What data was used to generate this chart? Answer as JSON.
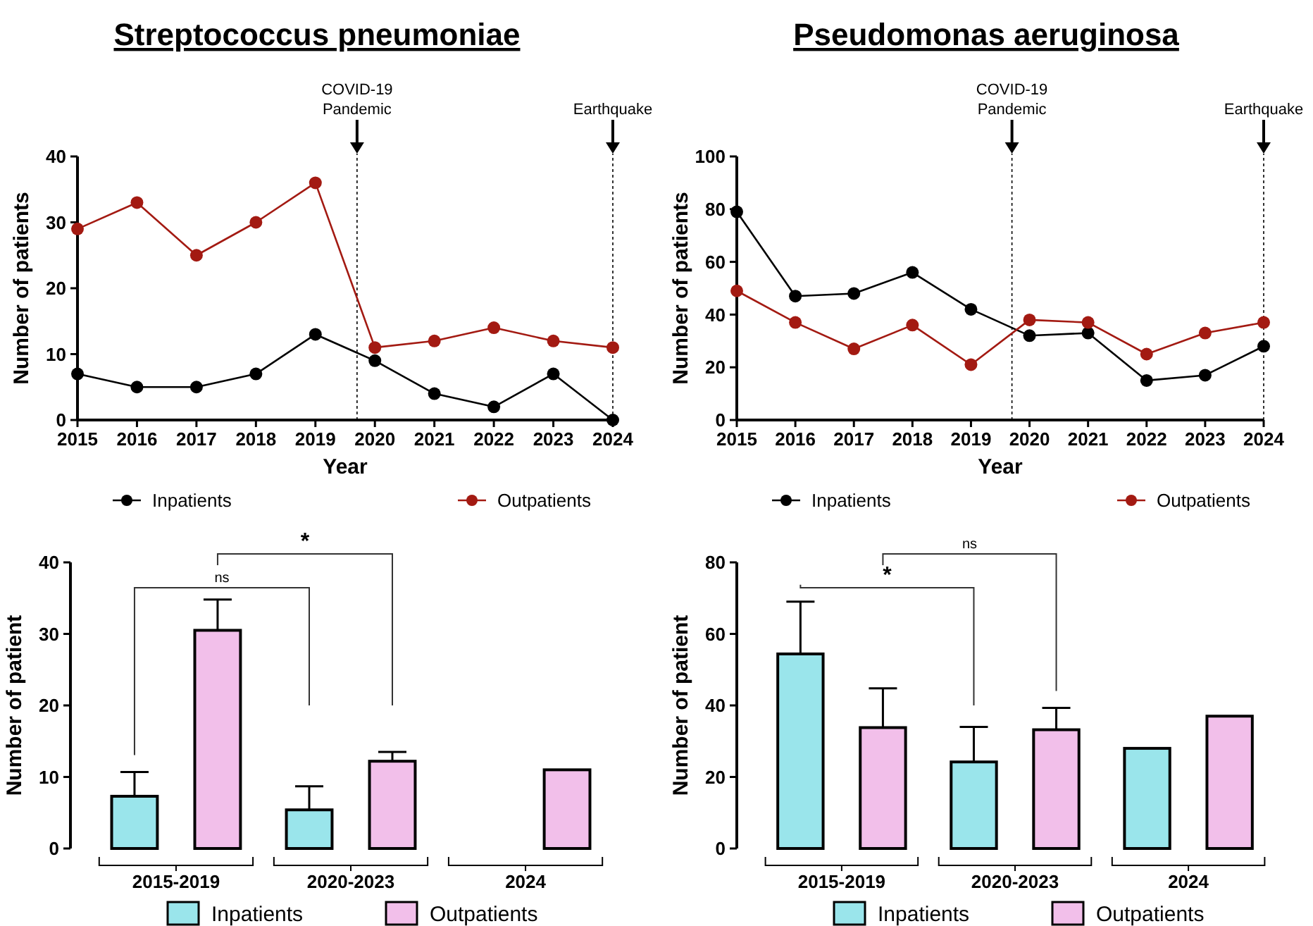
{
  "chart_data": [
    {
      "type": "line",
      "title": "Streptococcus pneumoniae",
      "xlabel": "Year",
      "ylabel": "Number of patients",
      "x": [
        2015,
        2016,
        2017,
        2018,
        2019,
        2020,
        2021,
        2022,
        2023,
        2024
      ],
      "xlim": [
        2015,
        2024
      ],
      "xticks": [
        2015,
        2016,
        2017,
        2018,
        2019,
        2020,
        2021,
        2022,
        2023,
        2024
      ],
      "ylim": [
        0,
        40
      ],
      "yticks": [
        0,
        10,
        20,
        30,
        40
      ],
      "marker": "circle",
      "legend": "bottom",
      "series": [
        {
          "name": "Inpatients",
          "color": "#000000",
          "values": [
            7,
            5,
            5,
            7,
            13,
            9,
            4,
            2,
            7,
            0
          ]
        },
        {
          "name": "Outpatients",
          "color": "#a31a12",
          "values": [
            29,
            33,
            25,
            30,
            36,
            11,
            12,
            14,
            12,
            11
          ]
        }
      ],
      "ref_lines": [
        {
          "axis": "x",
          "value": 2019.7,
          "label": "COVID-19 Pandemic",
          "line_style": "dotted"
        },
        {
          "axis": "x",
          "value": 2024,
          "label": "Earthquake",
          "line_style": "dotted"
        }
      ]
    },
    {
      "type": "line",
      "title": "Pseudomonas aeruginosa",
      "xlabel": "Year",
      "ylabel": "Number of patients",
      "x": [
        2015,
        2016,
        2017,
        2018,
        2019,
        2020,
        2021,
        2022,
        2023,
        2024
      ],
      "xlim": [
        2015,
        2024
      ],
      "xticks": [
        2015,
        2016,
        2017,
        2018,
        2019,
        2020,
        2021,
        2022,
        2023,
        2024
      ],
      "ylim": [
        0,
        100
      ],
      "yticks": [
        0,
        20,
        40,
        60,
        80,
        100
      ],
      "marker": "circle",
      "legend": "bottom",
      "series": [
        {
          "name": "Inpatients",
          "color": "#000000",
          "values": [
            79,
            47,
            48,
            56,
            42,
            32,
            33,
            15,
            17,
            28
          ]
        },
        {
          "name": "Outpatients",
          "color": "#a31a12",
          "values": [
            49,
            37,
            27,
            36,
            21,
            38,
            37,
            25,
            33,
            37
          ]
        }
      ],
      "ref_lines": [
        {
          "axis": "x",
          "value": 2019.7,
          "label": "COVID-19 Pandemic",
          "line_style": "dotted"
        },
        {
          "axis": "x",
          "value": 2024,
          "label": "Earthquake",
          "line_style": "dotted"
        }
      ]
    },
    {
      "type": "bar",
      "ylabel": "Number of patient",
      "categories": [
        "2015-2019",
        "2020-2023",
        "2024"
      ],
      "ylim": [
        0,
        40
      ],
      "yticks": [
        0,
        10,
        20,
        30,
        40
      ],
      "legend": "bottom",
      "annotations": [
        "ns",
        "*"
      ],
      "series": [
        {
          "name": "Inpatients",
          "color": "#9ae5eb",
          "values": [
            7.3,
            5.4,
            0
          ],
          "errors": [
            3.4,
            3.3,
            null
          ]
        },
        {
          "name": "Outpatients",
          "color": "#f2bfea",
          "values": [
            30.5,
            12.2,
            11
          ],
          "errors": [
            4.3,
            1.3,
            null
          ]
        }
      ]
    },
    {
      "type": "bar",
      "ylabel": "Number of patient",
      "categories": [
        "2015-2019",
        "2020-2023",
        "2024"
      ],
      "ylim": [
        0,
        80
      ],
      "yticks": [
        0,
        20,
        40,
        60,
        80
      ],
      "legend": "bottom",
      "annotations": [
        "*",
        "ns"
      ],
      "series": [
        {
          "name": "Inpatients",
          "color": "#9ae5eb",
          "values": [
            54.4,
            24.2,
            28
          ],
          "errors": [
            14.6,
            9.8,
            null
          ]
        },
        {
          "name": "Outpatients",
          "color": "#f2bfea",
          "values": [
            33.8,
            33.2,
            37
          ],
          "errors": [
            11,
            6.1,
            null
          ]
        }
      ]
    }
  ]
}
